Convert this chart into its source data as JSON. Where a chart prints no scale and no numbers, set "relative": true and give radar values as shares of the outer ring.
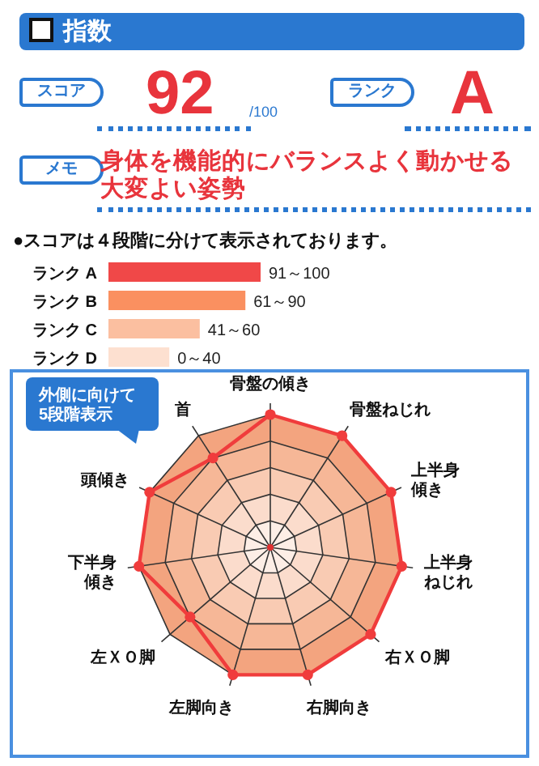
{
  "chart_data": [
    {
      "type": "other",
      "title": "指数",
      "annotations": [
        "スコア",
        "92",
        "/100",
        "ランク",
        "A",
        "メモ",
        "身体を機能的にバランスよく動かせる大変よい姿勢"
      ]
    },
    {
      "type": "bar",
      "orientation": "horizontal",
      "title": "●スコアは４段階に分けて表示されております。",
      "categories": [
        "ランク A",
        "ランク B",
        "ランク C",
        "ランク D"
      ],
      "values": [
        100,
        90,
        60,
        40
      ],
      "colors": [
        "#f04848",
        "#fa9060",
        "#fbbfa0",
        "#fde0d0"
      ],
      "value_labels": [
        "91～100",
        "61～90",
        "41～60",
        "0～40"
      ]
    },
    {
      "type": "radar",
      "relative": true,
      "categories": [
        "骨盤の傾き",
        "骨盤ねじれ",
        "上半身傾き",
        "上半身ねじれ",
        "右ＸＯ脚",
        "右脚向き",
        "左脚向き",
        "左ＸＯ脚",
        "下半身傾き",
        "頭傾き",
        "首"
      ],
      "series": [
        {
          "color": "#f03c3c",
          "values": [
            1,
            1,
            1,
            1,
            1,
            1,
            1,
            0.8,
            1,
            1,
            0.8
          ]
        }
      ],
      "marker": "circle",
      "annotations": [
        "外側に向けて\n5段階表示"
      ]
    }
  ]
}
